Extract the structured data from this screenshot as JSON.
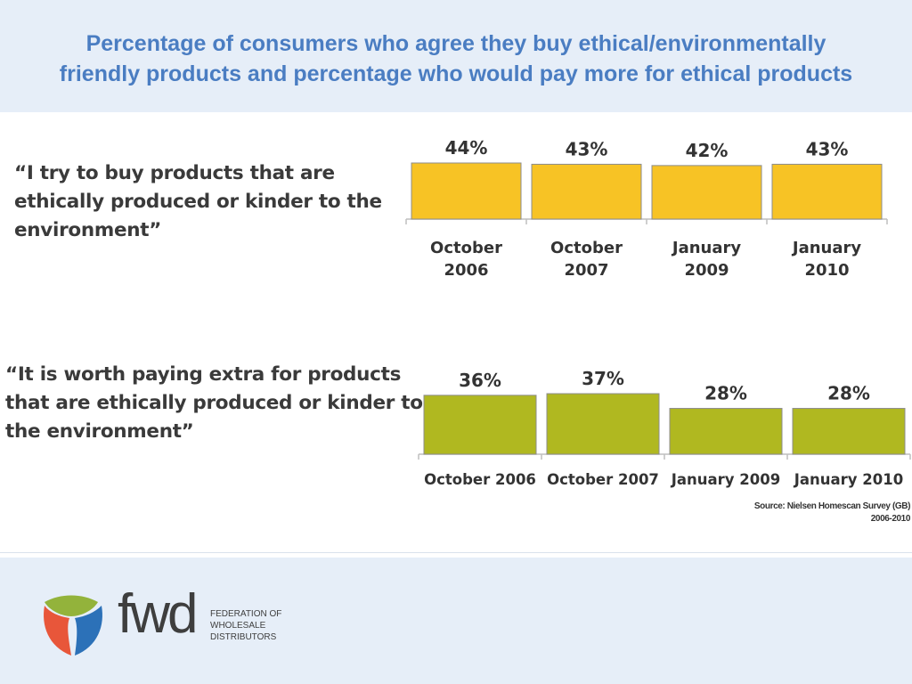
{
  "title_line1": "Percentage of consumers who agree they buy ethical/environmentally",
  "title_line2": "friendly products and percentage who would pay more for ethical products",
  "statement1": "“I try to buy products that are ethically produced or kinder to the environment”",
  "statement2": "“It is worth paying extra for products that are ethically produced or kinder to the environment”",
  "source_line1": "Source: Nielsen Homescan Survey (GB)",
  "source_line2": "2006-2010",
  "logo": {
    "wordmark": "fwd",
    "sub_line1": "FEDERATION OF",
    "sub_line2": "WHOLESALE",
    "sub_line3": "DISTRIBUTORS"
  },
  "colors": {
    "title": "#4a7dc2",
    "bar1": "#f7c325",
    "bar2": "#b0b820",
    "band": "#e6eef8"
  },
  "chart_data": [
    {
      "type": "bar",
      "categories": [
        [
          "October",
          "2006"
        ],
        [
          "October",
          "2007"
        ],
        [
          "January",
          "2009"
        ],
        [
          "January",
          "2010"
        ]
      ],
      "values": [
        44,
        43,
        42,
        43
      ],
      "data_labels": [
        "44%",
        "43%",
        "42%",
        "43%"
      ]
    },
    {
      "type": "bar",
      "categories": [
        [
          "October 2006"
        ],
        [
          "October 2007"
        ],
        [
          "January 2009"
        ],
        [
          "January 2010"
        ]
      ],
      "values": [
        36,
        37,
        28,
        28
      ],
      "data_labels": [
        "36%",
        "37%",
        "28%",
        "28%"
      ]
    }
  ]
}
